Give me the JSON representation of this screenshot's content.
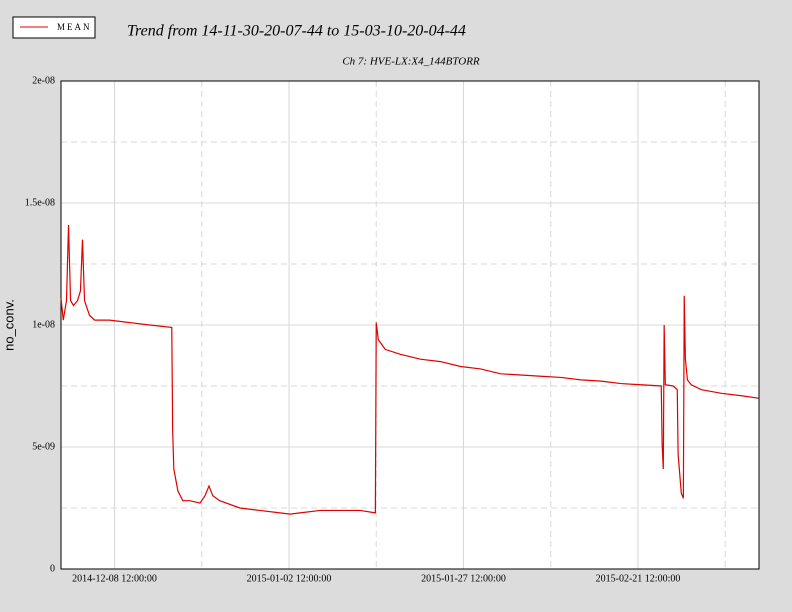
{
  "chart_data": {
    "type": "line",
    "title": "Trend from 14-11-30-20-07-44 to 15-03-10-20-04-44",
    "subtitle": "Ch 7: HVE-LX:X4_144BTORR",
    "y_label": "no_conv.",
    "legend_text_color": "#0000cc",
    "grid": true,
    "xlim": [
      "2014-11-30 20:07:44",
      "2015-03-10 20:04:44"
    ],
    "xticks": [
      "2014-12-08 12:00:00",
      "2015-01-02 12:00:00",
      "2015-01-27 12:00:00",
      "2015-02-21 12:00:00"
    ],
    "xminor": [
      "2014-12-21 00:00:00",
      "2015-01-15 00:00:00",
      "2015-02-09 00:00:00",
      "2015-03-06 00:00:00"
    ],
    "ylim": [
      0,
      2e-08
    ],
    "yticks": [
      0,
      {
        "value": 5e-09,
        "label": "5e-09"
      },
      {
        "value": 1e-08,
        "label": "1e-08"
      },
      {
        "value": 1.5e-08,
        "label": "1.5e-08"
      },
      {
        "value": 2e-08,
        "label": "2e-08"
      }
    ],
    "yminor": [
      2.5e-09,
      7.5e-09,
      1.25e-08,
      1.75e-08
    ],
    "x": [
      "2014-11-30 20:07",
      "2014-12-01 04:00",
      "2014-12-01 15:00",
      "2014-12-01 22:00",
      "2014-12-02 05:00",
      "2014-12-02 15:00",
      "2014-12-03 05:00",
      "2014-12-03 15:00",
      "2014-12-03 22:00",
      "2014-12-04 05:00",
      "2014-12-04 22:00",
      "2014-12-05 16:00",
      "2014-12-07 19:00",
      "2014-12-10 16:00",
      "2014-12-13 13:00",
      "2014-12-16 17:00",
      "2014-12-16 20:00",
      "2014-12-17 00:00",
      "2014-12-17 14:00",
      "2014-12-18 07:00",
      "2014-12-19 07:00",
      "2014-12-20 18:00",
      "2014-12-21 11:00",
      "2014-12-22 01:00",
      "2014-12-22 14:00",
      "2014-12-23 14:00",
      "2014-12-26 11:00",
      "2014-12-29 08:00",
      "2015-01-01 05:00",
      "2015-01-02 16:00",
      "2015-01-04 02:00",
      "2015-01-06 23:00",
      "2015-01-09 20:00",
      "2015-01-12 17:00",
      "2015-01-14 21:00",
      "2015-01-15 00:00",
      "2015-01-15 07:00",
      "2015-01-16 07:00",
      "2015-01-18 11:00",
      "2015-01-21 08:00",
      "2015-01-24 05:00",
      "2015-01-27 02:00",
      "2015-01-29 23:00",
      "2015-02-01 20:00",
      "2015-02-04 17:00",
      "2015-02-07 14:00",
      "2015-02-10 11:00",
      "2015-02-13 08:00",
      "2015-02-16 05:00",
      "2015-02-19 02:00",
      "2015-02-21 23:00",
      "2015-02-24 20:00",
      "2015-02-24 23:00",
      "2015-02-25 03:00",
      "2015-02-25 06:00",
      "2015-02-25 10:00",
      "2015-02-26 13:00",
      "2015-02-27 03:00",
      "2015-02-27 06:00",
      "2015-02-27 17:00",
      "2015-02-28 00:00",
      "2015-02-28 03:00",
      "2015-02-28 07:00",
      "2015-02-28 14:00",
      "2015-03-01 03:00",
      "2015-03-02 14:00",
      "2015-03-05 11:00",
      "2015-03-08 08:00",
      "2015-03-10 18:00"
    ],
    "series": [
      {
        "name": "MEAN",
        "color": "#e00000",
        "values": [
          1.11e-08,
          1.02e-08,
          1.1e-08,
          1.41e-08,
          1.1e-08,
          1.08e-08,
          1.1e-08,
          1.14e-08,
          1.35e-08,
          1.1e-08,
          1.04e-08,
          1.02e-08,
          1.02e-08,
          1.01e-08,
          1e-08,
          9.9e-09,
          5.7e-09,
          4.1e-09,
          3.2e-09,
          2.8e-09,
          2.8e-09,
          2.7e-09,
          3e-09,
          3.4e-09,
          3e-09,
          2.8e-09,
          2.5e-09,
          2.4e-09,
          2.3e-09,
          2.25e-09,
          2.3e-09,
          2.4e-09,
          2.4e-09,
          2.4e-09,
          2.3e-09,
          1.01e-08,
          9.4e-09,
          9e-09,
          8.8e-09,
          8.6e-09,
          8.5e-09,
          8.3e-09,
          8.2e-09,
          8e-09,
          7.95e-09,
          7.9e-09,
          7.85e-09,
          7.75e-09,
          7.7e-09,
          7.6e-09,
          7.55e-09,
          7.5e-09,
          5.1e-09,
          4.1e-09,
          1e-08,
          7.55e-09,
          7.5e-09,
          7.35e-09,
          4.7e-09,
          3.1e-09,
          2.9e-09,
          1.12e-08,
          8.6e-09,
          7.75e-09,
          7.55e-09,
          7.35e-09,
          7.2e-09,
          7.1e-09,
          7e-09
        ]
      }
    ]
  }
}
